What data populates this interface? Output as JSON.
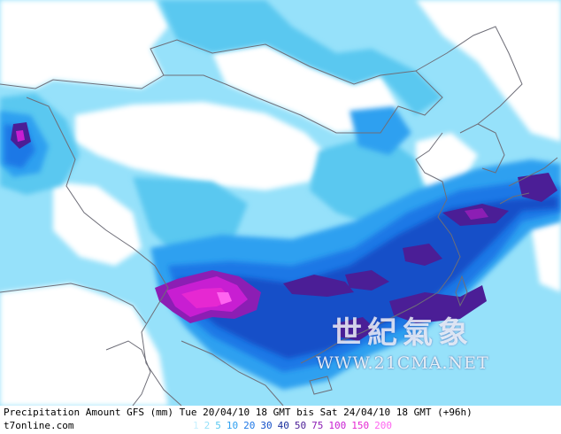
{
  "map": {
    "title": "Precipitation Amount GFS (mm) Tue 20/04/10 18 GMT bis Sat 24/04/10 18 GMT (+96h)",
    "site": "t7online.com",
    "watermark_cn": "世紀氣象",
    "watermark_url": "WWW.21CMA.NET",
    "legend": [
      {
        "label": "1",
        "color": "#c8f0ff"
      },
      {
        "label": "2",
        "color": "#96e1fa"
      },
      {
        "label": "5",
        "color": "#5ac8f0"
      },
      {
        "label": "10",
        "color": "#2fa0f0"
      },
      {
        "label": "20",
        "color": "#1e78e6"
      },
      {
        "label": "30",
        "color": "#1450c8"
      },
      {
        "label": "40",
        "color": "#1a2f9c"
      },
      {
        "label": "50",
        "color": "#4b1e96"
      },
      {
        "label": "75",
        "color": "#8c1eb4"
      },
      {
        "label": "100",
        "color": "#c81ed2"
      },
      {
        "label": "150",
        "color": "#e628d2"
      },
      {
        "label": "200",
        "color": "#ff64f0"
      }
    ]
  }
}
